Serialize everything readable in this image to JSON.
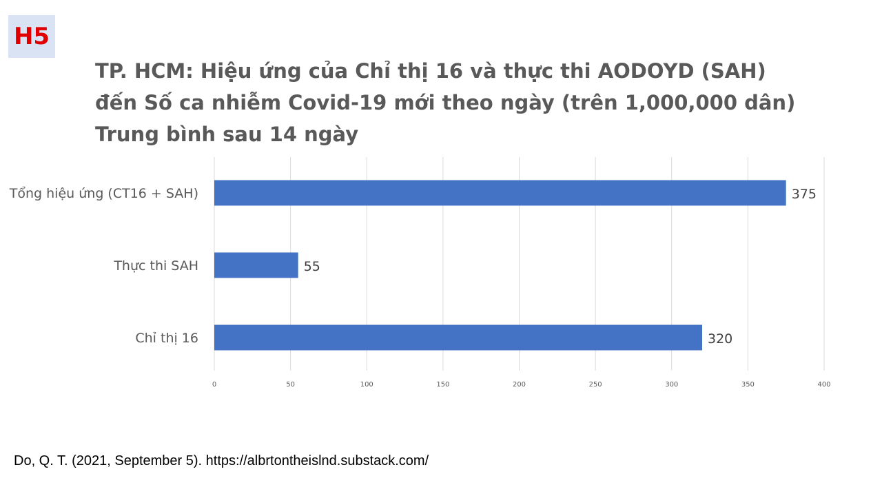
{
  "badge": "H5",
  "title_lines": [
    "TP. HCM: Hiệu ứng của Chỉ thị 16 và thực thi AODOYD (SAH)",
    "đến Số ca nhiễm Covid-19 mới theo ngày (trên 1,000,000 dân)",
    "Trung bình sau 14 ngày"
  ],
  "citation": "Do, Q. T. (2021, September  5). https://albrtontheislnd.substack.com/",
  "chart_data": {
    "type": "bar",
    "orientation": "horizontal",
    "categories": [
      "Tổng hiệu ứng (CT16 + SAH)",
      "Thực thi SAH",
      "Chỉ thị 16"
    ],
    "values": [
      375,
      55,
      320
    ],
    "xlim": [
      0,
      400
    ],
    "xticks": [
      0,
      50,
      100,
      150,
      200,
      250,
      300,
      350,
      400
    ],
    "grid": true,
    "bar_color": "#4472c4",
    "data_labels": true
  }
}
